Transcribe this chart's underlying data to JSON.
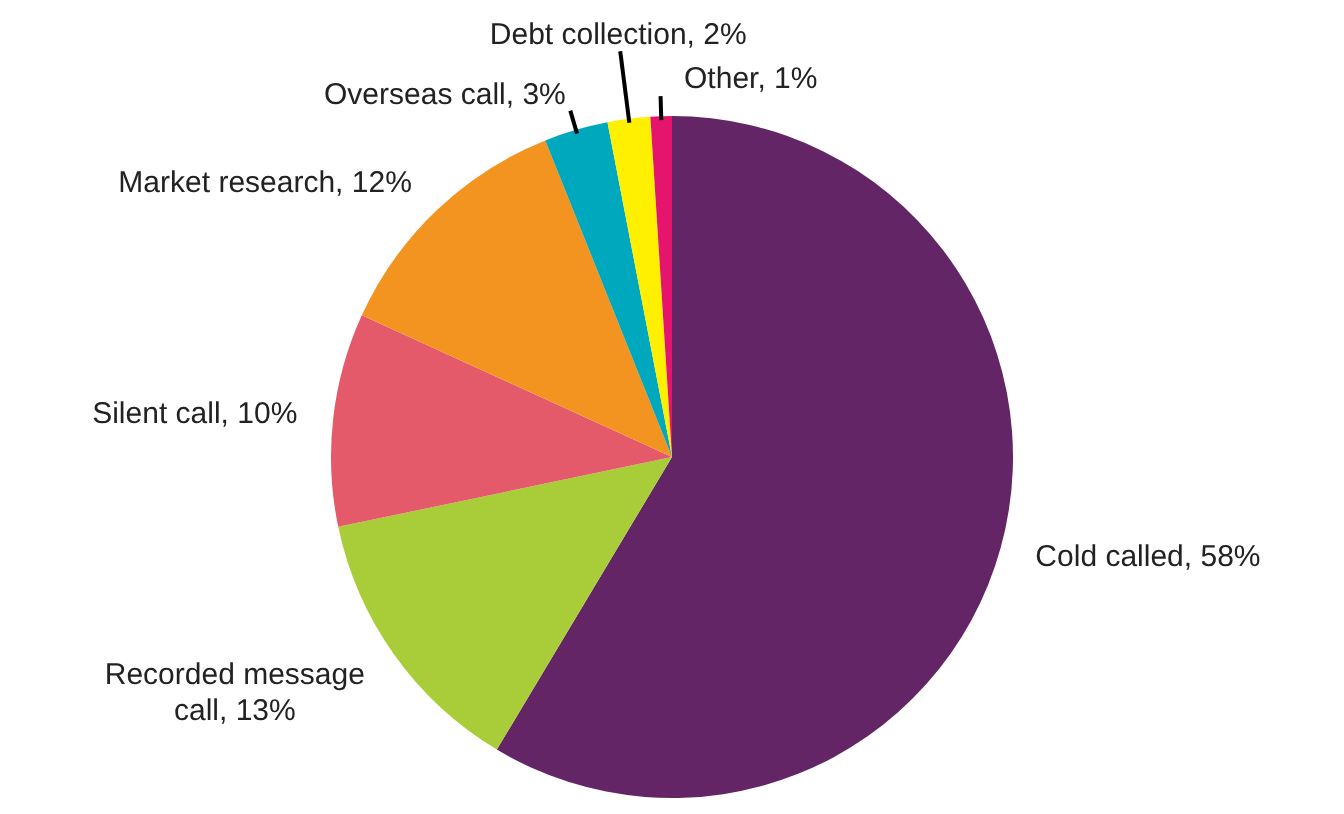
{
  "chart_data": {
    "type": "pie",
    "categories": [
      "Cold called",
      "Recorded message call",
      "Silent call",
      "Market research",
      "Overseas call",
      "Debt collection",
      "Other"
    ],
    "values": [
      58,
      13,
      10,
      12,
      3,
      2,
      1
    ],
    "value_labels": [
      "58%",
      "13%",
      "10%",
      "12%",
      "3%",
      "2%",
      "1%"
    ],
    "colors": [
      "#642566",
      "#a9cd38",
      "#e55a6a",
      "#f49420",
      "#00a8be",
      "#ffef00",
      "#e5146c"
    ],
    "legend": false
  }
}
